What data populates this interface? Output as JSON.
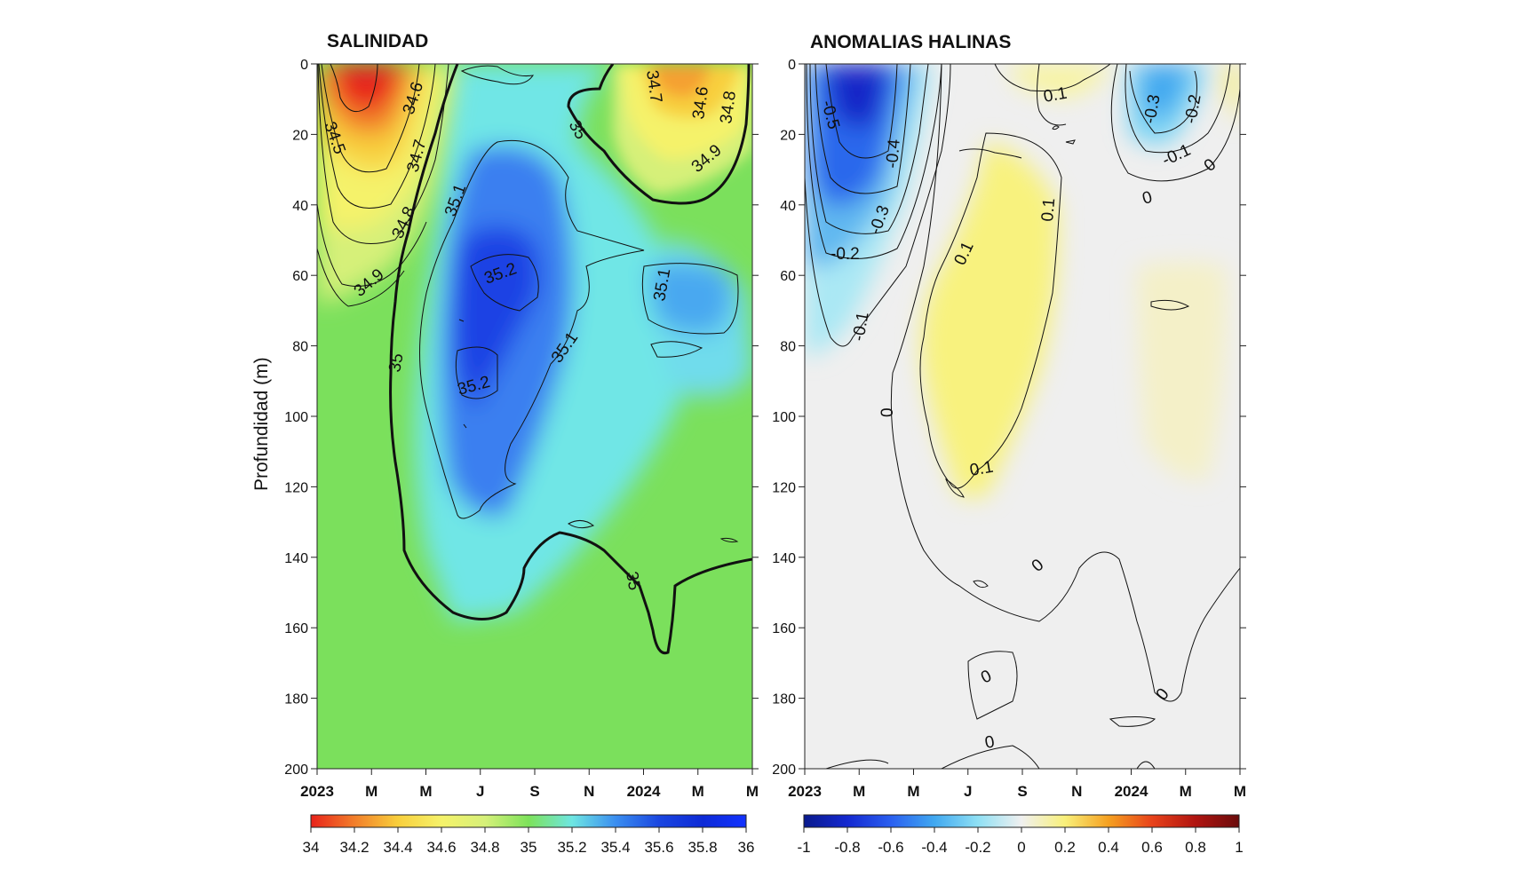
{
  "chart_data": [
    {
      "type": "heatmap",
      "title": "SALINIDAD",
      "ylabel": "Profundidad (m)",
      "ylim": [
        0,
        200
      ],
      "y_inverted": true,
      "yticks": [
        0,
        20,
        40,
        60,
        80,
        100,
        120,
        140,
        160,
        180,
        200
      ],
      "xticks": [
        "2023",
        "M",
        "M",
        "J",
        "S",
        "N",
        "2024",
        "M",
        "M"
      ],
      "colorbar": {
        "range": [
          34,
          36
        ],
        "ticks": [
          "34",
          "34.2",
          "34.4",
          "34.6",
          "34.8",
          "35",
          "35.2",
          "35.4",
          "35.6",
          "35.8",
          "36"
        ],
        "colors": [
          "#e8221a",
          "#f27e2a",
          "#f8cf3c",
          "#f5f26a",
          "#d6f079",
          "#7de25a",
          "#6ee6e2",
          "#3a8ef0",
          "#1a46e0",
          "#0d2ad6",
          "#1232ff"
        ]
      },
      "contour_labels": [
        "34.5",
        "34.6",
        "34.7",
        "34.8",
        "34.9",
        "35",
        "35.1",
        "35.2",
        "35.2",
        "35.1",
        "35",
        "34.7",
        "34.6",
        "34.8",
        "34.9",
        "35.1",
        "35"
      ],
      "features": [
        {
          "name": "low-salinity surface core",
          "time": "Jan-Mar 2023",
          "depth": [
            0,
            70
          ],
          "min_value": 34.3
        },
        {
          "name": "high-salinity core",
          "time": "Apr-Sep 2023",
          "depth": [
            25,
            130
          ],
          "max_value": 35.25
        },
        {
          "name": "low-salinity surface",
          "time": "Jan-Apr 2024",
          "depth": [
            0,
            40
          ],
          "min_value": 34.6
        }
      ]
    },
    {
      "type": "heatmap",
      "title": "ANOMALIAS HALINAS",
      "ylim": [
        0,
        200
      ],
      "y_inverted": true,
      "yticks": [
        0,
        20,
        40,
        60,
        80,
        100,
        120,
        140,
        160,
        180,
        200
      ],
      "xticks": [
        "2023",
        "M",
        "M",
        "J",
        "S",
        "N",
        "2024",
        "M",
        "M"
      ],
      "colorbar": {
        "range": [
          -1,
          1
        ],
        "ticks": [
          "-1",
          "-0.8",
          "-0.6",
          "-0.4",
          "-0.2",
          "0",
          "0.2",
          "0.4",
          "0.6",
          "0.8",
          "1"
        ],
        "colors": [
          "#0a1a8c",
          "#1428d0",
          "#2a5ff0",
          "#40a8f0",
          "#8fe0f4",
          "#f0f0f0",
          "#f8f07a",
          "#f5a020",
          "#e8421a",
          "#b01410",
          "#6a0c0c"
        ]
      },
      "contour_labels": [
        "-0.5",
        "-0.4",
        "-0.3",
        "-0.2",
        "-0.1",
        "0",
        "0.1",
        "0.1",
        "0.1",
        "0.1",
        "-0.3",
        "-0.2",
        "-0.1",
        "0",
        "0",
        "0",
        "0",
        "0",
        "0"
      ],
      "features": [
        {
          "name": "negative anomaly",
          "time": "Jan-Mar 2023",
          "depth": [
            0,
            85
          ],
          "min_value": -0.6
        },
        {
          "name": "positive anomaly",
          "time": "Apr-Sep 2023",
          "depth": [
            25,
            125
          ],
          "max_value": 0.15
        },
        {
          "name": "negative anomaly",
          "time": "Jan-Mar 2024",
          "depth": [
            0,
            40
          ],
          "min_value": -0.35
        }
      ]
    }
  ]
}
